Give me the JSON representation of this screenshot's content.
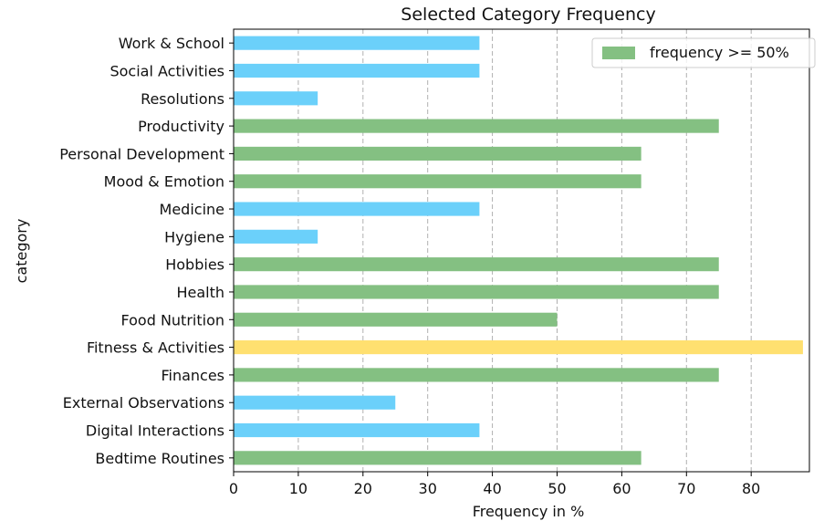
{
  "chart_data": {
    "type": "bar",
    "orientation": "horizontal",
    "title": "Selected Category Frequency",
    "xlabel": "Frequency in %",
    "ylabel": "category",
    "xlim": [
      0,
      89
    ],
    "xticks": [
      0,
      10,
      20,
      30,
      40,
      50,
      60,
      70,
      80
    ],
    "grid": "vertical dashed",
    "legend": {
      "placement": "top-right",
      "entries": [
        {
          "label": "frequency >= 50%",
          "color": "#84c082"
        }
      ]
    },
    "colors": {
      "high": "#84c082",
      "low": "#6bd0fa",
      "highlight": "#ffe070"
    },
    "bars": [
      {
        "category": "Work & School",
        "value": 38,
        "group": "low"
      },
      {
        "category": "Social Activities",
        "value": 38,
        "group": "low"
      },
      {
        "category": "Resolutions",
        "value": 13,
        "group": "low"
      },
      {
        "category": "Productivity",
        "value": 75,
        "group": "high"
      },
      {
        "category": "Personal Development",
        "value": 63,
        "group": "high"
      },
      {
        "category": "Mood & Emotion",
        "value": 63,
        "group": "high"
      },
      {
        "category": "Medicine",
        "value": 38,
        "group": "low"
      },
      {
        "category": "Hygiene",
        "value": 13,
        "group": "low"
      },
      {
        "category": "Hobbies",
        "value": 75,
        "group": "high"
      },
      {
        "category": "Health",
        "value": 75,
        "group": "high"
      },
      {
        "category": "Food Nutrition",
        "value": 50,
        "group": "high"
      },
      {
        "category": "Fitness & Activities",
        "value": 88,
        "group": "highlight"
      },
      {
        "category": "Finances",
        "value": 75,
        "group": "high"
      },
      {
        "category": "External Observations",
        "value": 25,
        "group": "low"
      },
      {
        "category": "Digital Interactions",
        "value": 38,
        "group": "low"
      },
      {
        "category": "Bedtime Routines",
        "value": 63,
        "group": "high"
      }
    ]
  }
}
